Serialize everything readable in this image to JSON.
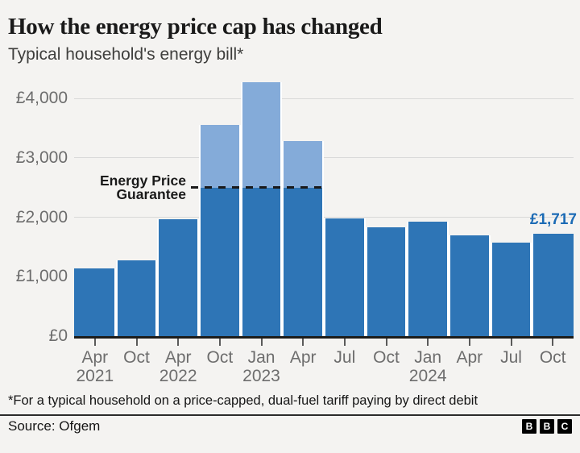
{
  "chart_data": {
    "type": "bar",
    "title": "How the energy price cap has changed",
    "subtitle": "Typical household's energy bill*",
    "categories": [
      "Apr",
      "Oct",
      "Apr",
      "Oct",
      "Jan",
      "Apr",
      "Jul",
      "Oct",
      "Jan",
      "Apr",
      "Jul",
      "Oct"
    ],
    "year_labels": {
      "0": "2021",
      "2": "2022",
      "4": "2023",
      "8": "2024"
    },
    "values": [
      1138,
      1277,
      1971,
      3549,
      4279,
      3280,
      1976,
      1834,
      1928,
      1690,
      1568,
      1717
    ],
    "ylabel": "",
    "xlabel": "",
    "ylim": [
      0,
      4341
    ],
    "yticks": [
      {
        "label": "£0",
        "value": 0
      },
      {
        "label": "£1,000",
        "value": 1000
      },
      {
        "label": "£2,000",
        "value": 2000
      },
      {
        "label": "£3,000",
        "value": 3000
      },
      {
        "label": "£4,000",
        "value": 4000
      }
    ],
    "grid": "horizontal",
    "legend": "none",
    "guarantee": {
      "label_line1": "Energy Price",
      "label_line2": "Guarantee",
      "value": 2500,
      "from_bar": 3,
      "to_bar": 5
    },
    "annotation": {
      "text": "£1,717",
      "bar_index": 11
    },
    "colors": {
      "bar": "#2e75b6",
      "bar_above_guarantee": "#84abd9",
      "annotation": "#1c6bb5",
      "gridline": "#d9d9d9",
      "axis": "#1d1d1b",
      "tick_text": "#6d6d6d"
    }
  },
  "footer": {
    "footnote": "*For a typical household on a price-capped, dual-fuel tariff paying by direct debit",
    "source": "Source: Ofgem",
    "logo_letters": [
      "B",
      "B",
      "C"
    ]
  }
}
